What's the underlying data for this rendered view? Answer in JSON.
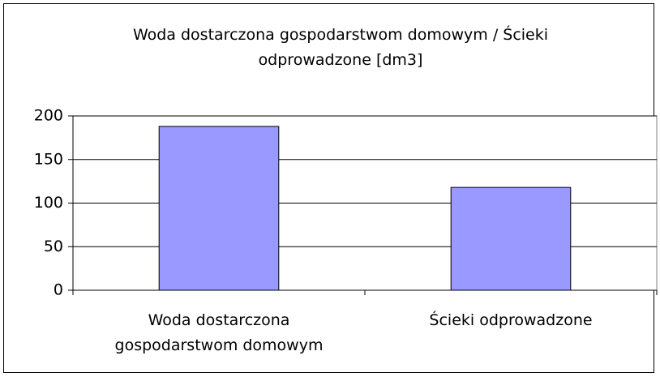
{
  "chart_data": {
    "type": "bar",
    "title": "Woda dostarczona gospodarstwom domowym / Ścieki odprowadzone [dm3]",
    "categories": [
      "Woda dostarczona gospodarstwom domowym",
      "Ścieki odprowadzone"
    ],
    "values": [
      188,
      118
    ],
    "color": "#9999ff",
    "ylim": [
      0,
      200
    ],
    "yticks": [
      0,
      50,
      100,
      150,
      200
    ],
    "grid": true
  }
}
